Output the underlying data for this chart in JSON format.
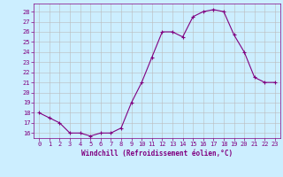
{
  "x": [
    0,
    1,
    2,
    3,
    4,
    5,
    6,
    7,
    8,
    9,
    10,
    11,
    12,
    13,
    14,
    15,
    16,
    17,
    18,
    19,
    20,
    21,
    22,
    23
  ],
  "y": [
    18.0,
    17.5,
    17.0,
    16.0,
    16.0,
    15.7,
    16.0,
    16.0,
    16.5,
    19.0,
    21.0,
    23.5,
    26.0,
    26.0,
    25.5,
    27.5,
    28.0,
    28.2,
    28.0,
    25.7,
    24.0,
    21.5,
    21.0,
    21.0
  ],
  "line_color": "#800080",
  "marker": "+",
  "markersize": 3,
  "linewidth": 0.8,
  "xlabel": "Windchill (Refroidissement éolien,°C)",
  "xlim": [
    -0.5,
    23.5
  ],
  "ylim": [
    15.5,
    28.8
  ],
  "yticks": [
    16,
    17,
    18,
    19,
    20,
    21,
    22,
    23,
    24,
    25,
    26,
    27,
    28
  ],
  "xticks": [
    0,
    1,
    2,
    3,
    4,
    5,
    6,
    7,
    8,
    9,
    10,
    11,
    12,
    13,
    14,
    15,
    16,
    17,
    18,
    19,
    20,
    21,
    22,
    23
  ],
  "bg_color": "#cceeff",
  "grid_color": "#bbbbbb",
  "tick_fontsize": 5,
  "xlabel_fontsize": 5.5
}
